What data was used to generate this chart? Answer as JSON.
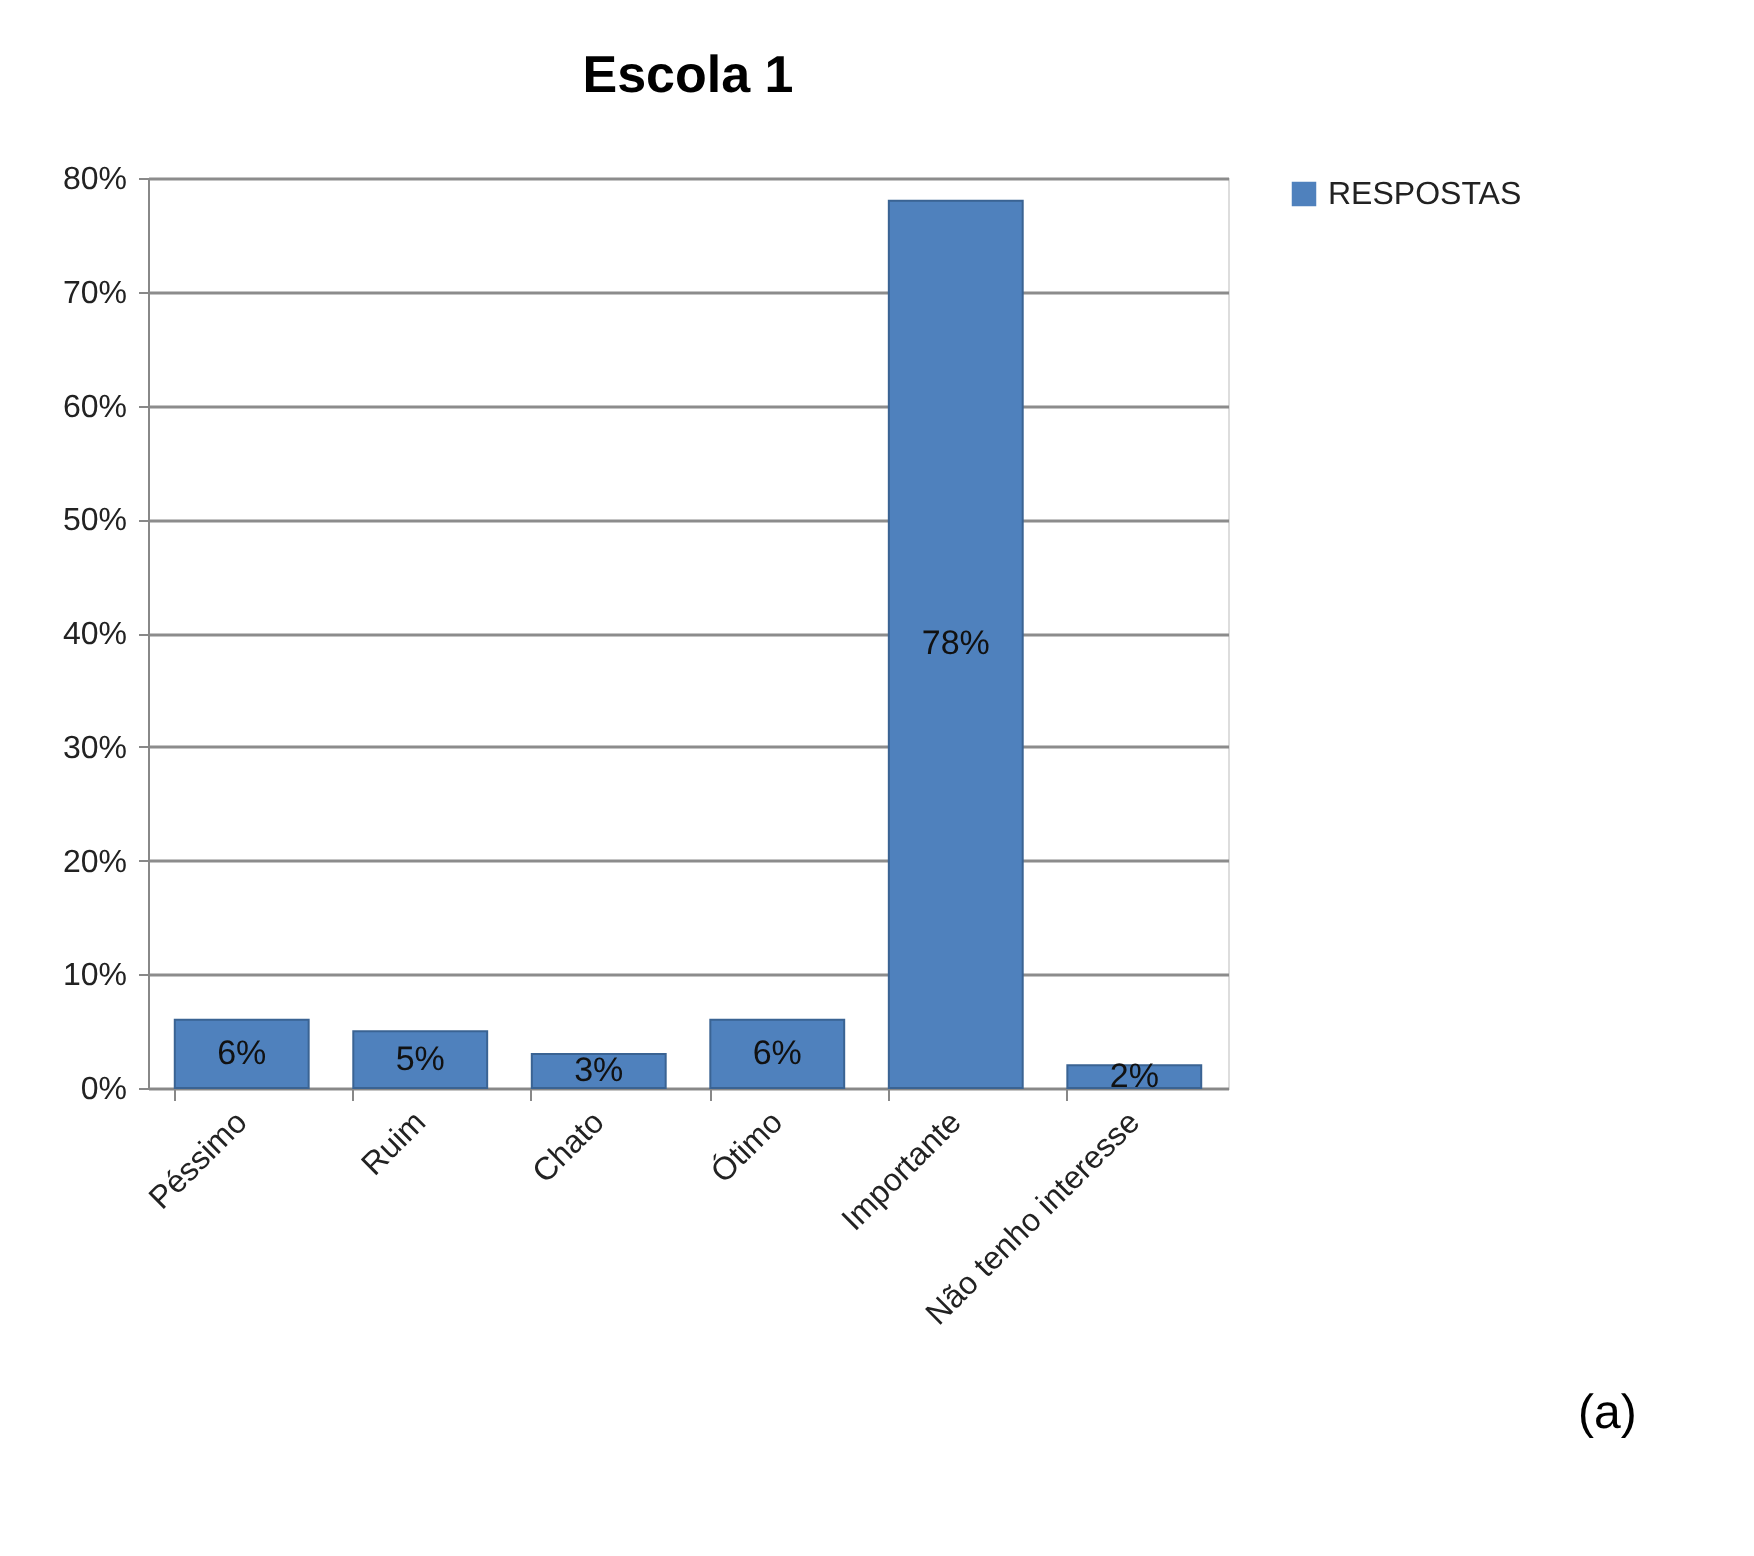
{
  "chart_data": {
    "type": "bar",
    "title": "Escola 1",
    "categories": [
      "Péssimo",
      "Ruim",
      "Chato",
      "Ótimo",
      "Importante",
      "Não tenho interesse"
    ],
    "series": [
      {
        "name": "RESPOSTAS",
        "color": "#4f81bd",
        "values": [
          6,
          5,
          3,
          6,
          78,
          2
        ],
        "value_labels": [
          "6%",
          "5%",
          "3%",
          "6%",
          "78%",
          "2%"
        ]
      }
    ],
    "ylim": [
      0,
      80
    ],
    "yticks": [
      {
        "value": 0,
        "label": "0%"
      },
      {
        "value": 10,
        "label": "10%"
      },
      {
        "value": 20,
        "label": "20%"
      },
      {
        "value": 30,
        "label": "30%"
      },
      {
        "value": 40,
        "label": "40%"
      },
      {
        "value": 50,
        "label": "50%"
      },
      {
        "value": 60,
        "label": "60%"
      },
      {
        "value": 70,
        "label": "70%"
      },
      {
        "value": 80,
        "label": "80%"
      }
    ],
    "grid": "y",
    "legend": "right",
    "annotations": [
      "(a)"
    ]
  }
}
